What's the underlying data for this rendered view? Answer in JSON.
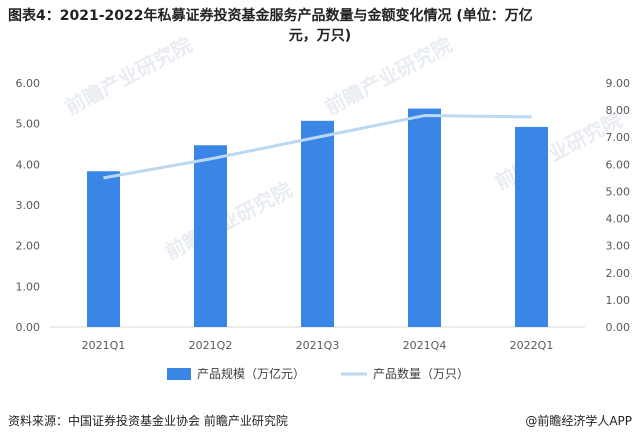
{
  "title_line1": "图表4：2021-2022年私募证券投资基金服务产品数量与金额变化情况 (单位：万亿",
  "title_line2": "元，万只)",
  "footer": {
    "source": "资料来源：中国证券投资基金业协会 前瞻产业研究院",
    "brand": "@前瞻经济学人APP"
  },
  "watermark_text": "前瞻产业研究院",
  "chart_data": {
    "type": "bar",
    "categories": [
      "2021Q1",
      "2021Q2",
      "2021Q3",
      "2021Q4",
      "2022Q1"
    ],
    "series": [
      {
        "name": "产品规模（万亿元）",
        "kind": "bar",
        "axis": "left",
        "values": [
          3.83,
          4.47,
          5.07,
          5.37,
          4.92
        ],
        "color": "#3a86e6"
      },
      {
        "name": "产品数量（万只）",
        "kind": "line",
        "axis": "right",
        "values": [
          5.5,
          6.2,
          7.0,
          7.8,
          7.75
        ],
        "color": "#bcd7f0"
      }
    ],
    "y_left": {
      "ylim": [
        0,
        6
      ],
      "ticks": [
        "0.00",
        "1.00",
        "2.00",
        "3.00",
        "4.00",
        "5.00",
        "6.00"
      ]
    },
    "y_right": {
      "ylim": [
        0,
        9
      ],
      "ticks": [
        "0.00",
        "1.00",
        "2.00",
        "3.00",
        "4.00",
        "5.00",
        "6.00",
        "7.00",
        "8.00",
        "9.00"
      ]
    },
    "grid": false,
    "legend_position": "bottom"
  }
}
